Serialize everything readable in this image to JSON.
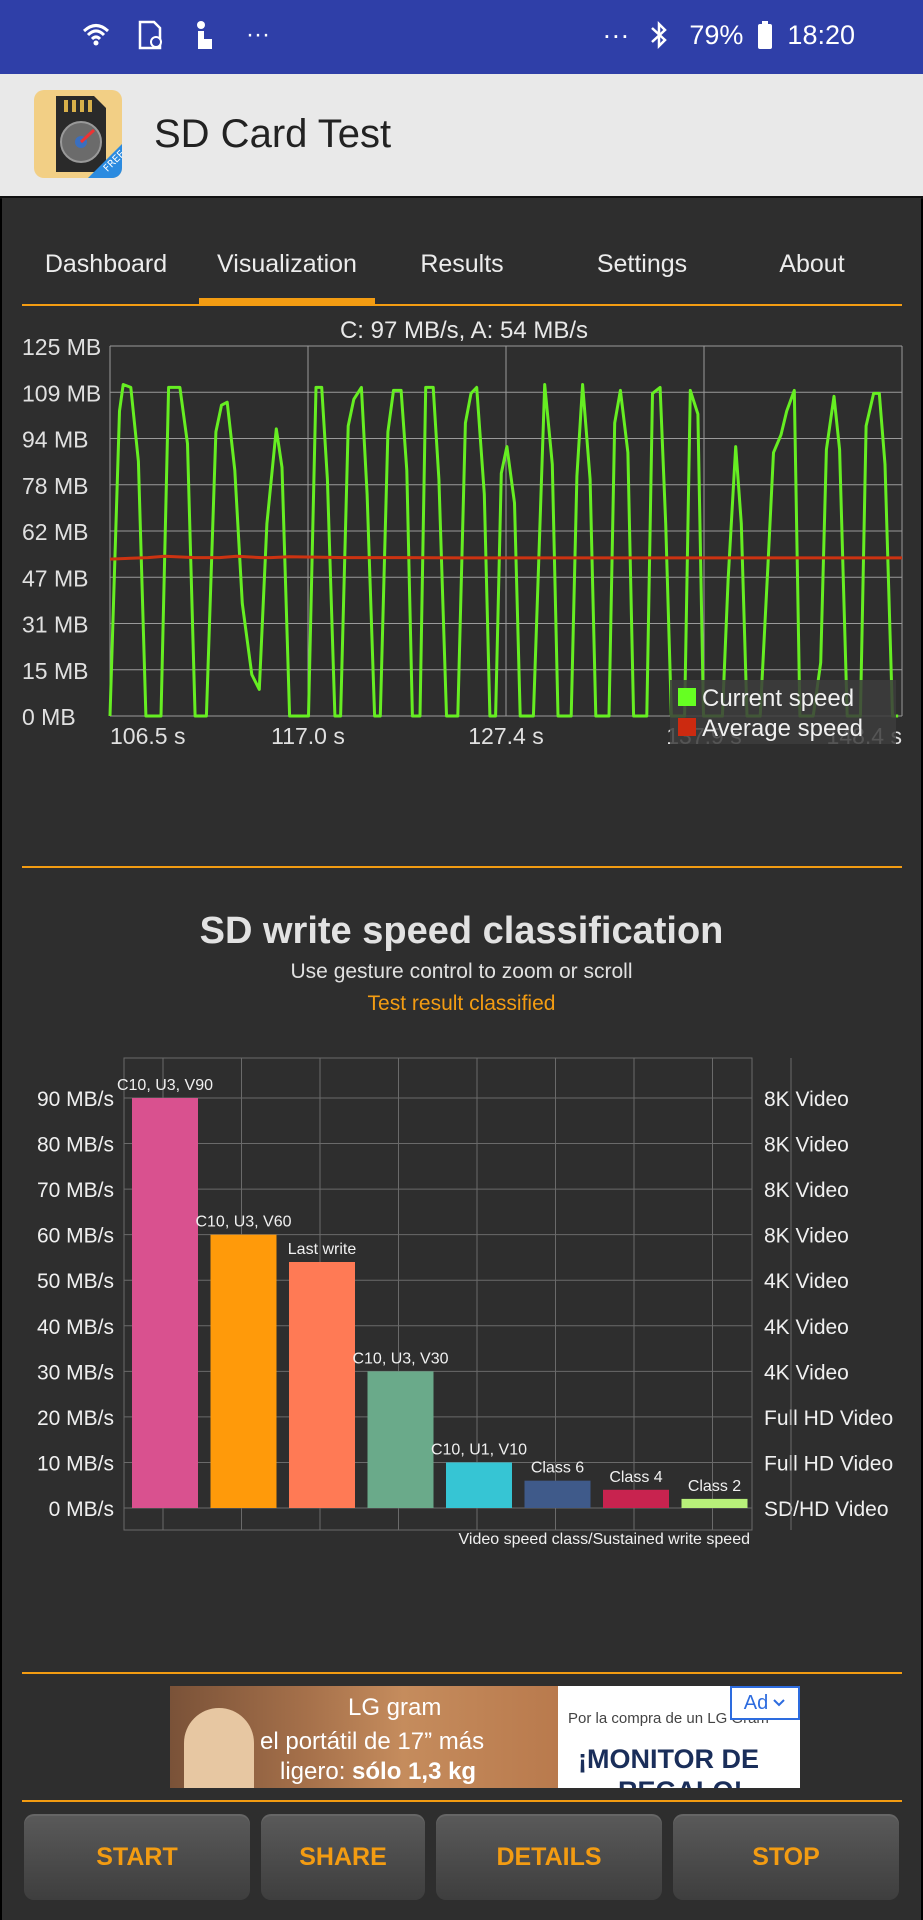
{
  "status_bar": {
    "battery": "79%",
    "time": "18:20",
    "left_icons": [
      "wifi-icon",
      "sd-card-icon",
      "touch-icon",
      "more-icon"
    ],
    "right_icons": [
      "more-icon",
      "bluetooth-icon",
      "battery-icon"
    ],
    "overflow": "···"
  },
  "app": {
    "title": "SD Card Test",
    "icon_badge": "FREE"
  },
  "tabs": [
    {
      "label": "Dashboard"
    },
    {
      "label": "Visualization",
      "active": true
    },
    {
      "label": "Results"
    },
    {
      "label": "Settings"
    },
    {
      "label": "About"
    }
  ],
  "speed_chart": {
    "header": "C: 97 MB/s, A: 54 MB/s",
    "y_ticks": [
      "125 MB",
      "109 MB",
      "94 MB",
      "78 MB",
      "62 MB",
      "47 MB",
      "31 MB",
      "15 MB",
      "0 MB"
    ],
    "x_ticks": [
      "106.5 s",
      "117.0 s",
      "127.4 s",
      "137.9 s",
      "148.4 s"
    ],
    "legend": [
      {
        "label": "Current speed",
        "color": "#66ff22"
      },
      {
        "label": "Average speed",
        "color": "#cc2a10"
      }
    ],
    "colors": {
      "current": "#66ee22",
      "average": "#cc3311",
      "grid": "#9a9a9a"
    }
  },
  "classification": {
    "title": "SD write speed classification",
    "subtitle": "Use gesture control to zoom or scroll",
    "status": "Test result classified"
  },
  "chart_data": [
    {
      "type": "line",
      "xlabel": "",
      "ylabel": "",
      "x_range": [
        106.5,
        148.4
      ],
      "ylim": [
        0,
        125
      ],
      "series": [
        {
          "name": "Current speed",
          "x": [
            106.5,
            107.0,
            107.2,
            107.6,
            108.0,
            108.4,
            108.9,
            109.2,
            109.6,
            110.2,
            110.6,
            111.0,
            111.3,
            111.6,
            112.1,
            112.4,
            112.7,
            113.1,
            113.5,
            114.0,
            114.4,
            114.8,
            115.3,
            115.6,
            116.0,
            116.4,
            116.8,
            117.0,
            117.4,
            117.7,
            118.0,
            118.4,
            118.7,
            119.1,
            119.4,
            119.8,
            120.1,
            120.5,
            120.8,
            121.2,
            121.5,
            121.9,
            122.2,
            122.5,
            122.9,
            123.2,
            123.6,
            123.9,
            124.3,
            124.6,
            124.9,
            125.3,
            125.6,
            125.9,
            126.3,
            126.6,
            126.9,
            127.2,
            127.5,
            127.9,
            128.2,
            128.5,
            128.9,
            129.2,
            129.5,
            129.9,
            130.2,
            130.5,
            130.9,
            131.2,
            131.5,
            131.9,
            132.2,
            132.5,
            132.9,
            133.2,
            133.5,
            133.9,
            134.2,
            134.6,
            134.9,
            135.2,
            135.6,
            135.9,
            136.2,
            136.5,
            136.9,
            137.2,
            137.6,
            137.9,
            138.2,
            138.5,
            138.9,
            139.2,
            139.6,
            139.9,
            140.2,
            140.6,
            140.9,
            141.3,
            141.6,
            142.0,
            142.3,
            142.7,
            143.0,
            143.4,
            143.7,
            144.1,
            144.4,
            144.8,
            145.1,
            145.5,
            145.8,
            146.2,
            146.5,
            146.9,
            147.2,
            147.5,
            147.9,
            148.2
          ],
          "values": [
            0,
            103,
            112,
            111,
            86,
            0,
            0,
            0,
            111,
            111,
            92,
            0,
            0,
            0,
            96,
            105,
            106,
            83,
            38,
            14,
            9,
            65,
            97,
            84,
            0,
            0,
            0,
            0,
            111,
            111,
            80,
            0,
            0,
            98,
            107,
            111,
            75,
            0,
            0,
            96,
            110,
            110,
            83,
            0,
            0,
            111,
            111,
            80,
            0,
            0,
            0,
            99,
            109,
            111,
            75,
            0,
            0,
            82,
            91,
            72,
            0,
            0,
            0,
            56,
            112,
            85,
            0,
            0,
            0,
            81,
            112,
            80,
            0,
            0,
            0,
            99,
            110,
            89,
            0,
            0,
            0,
            109,
            111,
            65,
            0,
            0,
            0,
            110,
            102,
            0,
            0,
            0,
            0,
            46,
            91,
            65,
            0,
            0,
            0,
            50,
            89,
            95,
            103,
            110,
            0,
            0,
            0,
            18,
            90,
            108,
            90,
            0,
            0,
            0,
            98,
            109,
            109,
            85,
            0,
            0
          ]
        },
        {
          "name": "Average speed",
          "x": [
            106.5,
            108.5,
            109.4,
            111.0,
            112.3,
            113.2,
            114.5,
            115.0,
            116.0,
            119.0,
            122.0,
            125.0,
            129.0,
            135.0,
            140.0,
            148.4
          ],
          "values": [
            53,
            53.5,
            54,
            53.5,
            53.5,
            54,
            53.5,
            53.5,
            53.8,
            53.5,
            53.5,
            53.4,
            53.4,
            53.4,
            53.4,
            53.4
          ]
        }
      ]
    },
    {
      "type": "bar",
      "title": "SD write speed classification",
      "categories": [
        "C10, U3, V90",
        "C10, U3, V60",
        "Last write",
        "C10, U3, V30",
        "C10, U1, V10",
        "Class 6",
        "Class 4",
        "Class 2"
      ],
      "values": [
        90,
        60,
        54,
        30,
        10,
        6,
        4,
        2
      ],
      "colors": [
        "#d9518f",
        "#ff9a0a",
        "#ff7a55",
        "#6aaa8a",
        "#36c5d4",
        "#3f5a8a",
        "#c8234f",
        "#b8f07a"
      ],
      "ylim": [
        0,
        100
      ],
      "y_ticks": [
        "0 MB/s",
        "10 MB/s",
        "20 MB/s",
        "30 MB/s",
        "40 MB/s",
        "50 MB/s",
        "60 MB/s",
        "70 MB/s",
        "80 MB/s",
        "90 MB/s"
      ],
      "y_right_ticks": [
        "SD/HD Video",
        "Full HD Video",
        "Full HD Video",
        "4K Video",
        "4K Video",
        "4K Video",
        "8K Video",
        "8K Video",
        "8K Video",
        "8K Video"
      ],
      "xlabel": "Video speed class/Sustained write speed"
    }
  ],
  "ad": {
    "brand": "LG gram",
    "line1": "el portátil de 17” más",
    "line2_a": "ligero: ",
    "line2_b": "sólo 1,3 kg",
    "right_line1": "Por la compra de un LG Gram",
    "right_line2": "¡MONITOR DE",
    "right_line3": "REGALO!",
    "badge": "Ad"
  },
  "buttons": {
    "start": "START",
    "share": "SHARE",
    "details": "DETAILS",
    "stop": "STOP"
  }
}
